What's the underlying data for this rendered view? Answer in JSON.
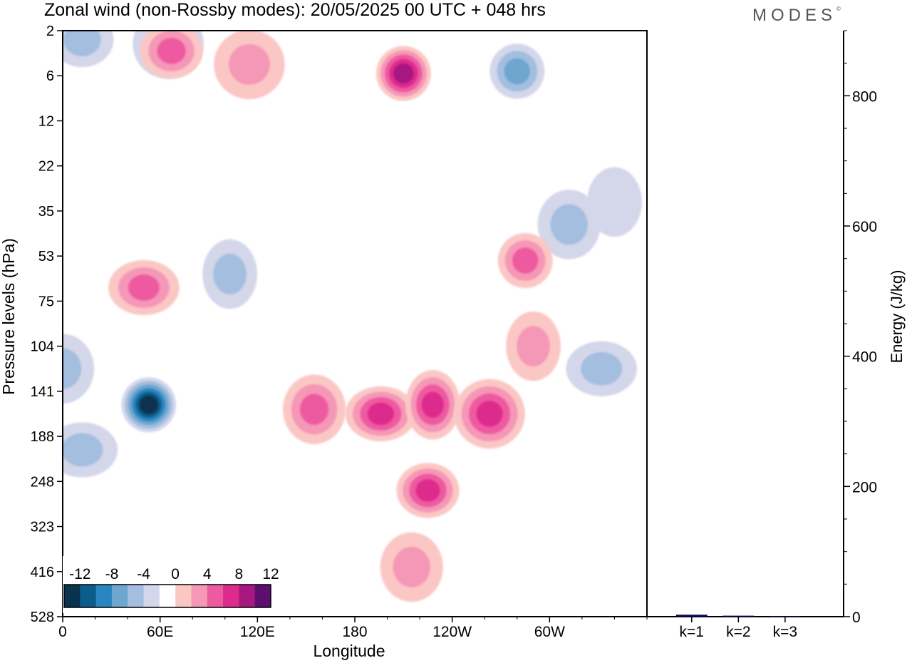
{
  "title": "Zonal wind (non-Rossby modes):  20/05/2025  00 UTC  + 048 hrs",
  "brand": "MODES",
  "brand_mark": "©",
  "chart_data": [
    {
      "type": "heatmap",
      "title": "Zonal wind (non-Rossby modes):  20/05/2025  00 UTC  + 048 hrs",
      "xlabel": "Longitude",
      "ylabel": "Pressure levels (hPa)",
      "x_ticks": [
        "0",
        "60E",
        "120E",
        "180",
        "120W",
        "60W"
      ],
      "x_tick_degrees": [
        0,
        60,
        120,
        180,
        240,
        300
      ],
      "xlim": [
        0,
        360
      ],
      "y_levels": [
        "2",
        "6",
        "12",
        "22",
        "35",
        "53",
        "75",
        "104",
        "141",
        "188",
        "248",
        "323",
        "416",
        "528"
      ],
      "legend": {
        "labels": [
          "-12",
          "-8",
          "-4",
          "0",
          "4",
          "8",
          "12"
        ],
        "bounds": [
          -14,
          -12,
          -10,
          -8,
          -6,
          -4,
          -2,
          2,
          4,
          6,
          8,
          10,
          12,
          14
        ],
        "colors": [
          "#08334f",
          "#0b5c8a",
          "#2a86c1",
          "#6ea6d0",
          "#a3bedf",
          "#d4d6ea",
          "#ffffff",
          "#fbc7c5",
          "#f597b6",
          "#ee5aa0",
          "#dd2b8d",
          "#a8167f",
          "#5c0f6f"
        ],
        "placement": "bottom-left"
      },
      "features": [
        {
          "lon": 53,
          "level": 8.3,
          "value": -12
        },
        {
          "lon": 0,
          "level": 7.5,
          "value": -4
        },
        {
          "lon": 12,
          "level": 9.3,
          "value": -4
        },
        {
          "lon": 103,
          "level": 5.4,
          "value": -4
        },
        {
          "lon": 12,
          "level": 0.2,
          "value": -4
        },
        {
          "lon": 65,
          "level": 0.3,
          "value": -4
        },
        {
          "lon": 280,
          "level": 0.9,
          "value": -6
        },
        {
          "lon": 312,
          "level": 4.3,
          "value": -4
        },
        {
          "lon": 332,
          "level": 7.5,
          "value": -4
        },
        {
          "lon": 340,
          "level": 3.8,
          "value": -2
        },
        {
          "lon": 67,
          "level": 0.45,
          "value": 6
        },
        {
          "lon": 115,
          "level": 0.75,
          "value": 4
        },
        {
          "lon": 210,
          "level": 0.95,
          "value": 10
        },
        {
          "lon": 155,
          "level": 8.4,
          "value": 6
        },
        {
          "lon": 196,
          "level": 8.5,
          "value": 8
        },
        {
          "lon": 228,
          "level": 8.3,
          "value": 8
        },
        {
          "lon": 225,
          "level": 10.2,
          "value": 8
        },
        {
          "lon": 263,
          "level": 8.5,
          "value": 8
        },
        {
          "lon": 285,
          "level": 5.1,
          "value": 6
        },
        {
          "lon": 215,
          "level": 11.9,
          "value": 4
        },
        {
          "lon": 50,
          "level": 5.7,
          "value": 6
        },
        {
          "lon": 290,
          "level": 7.0,
          "value": 4
        }
      ]
    },
    {
      "type": "bar",
      "categories": [
        "k=1",
        "k=2",
        "k=3"
      ],
      "values": [
        3,
        1.5,
        1
      ],
      "ylabel": "Energy (J/kg)",
      "ylim": [
        0,
        900
      ],
      "y_ticks": [
        0,
        200,
        400,
        600,
        800
      ],
      "bar_color": "#0b0b5a"
    }
  ]
}
